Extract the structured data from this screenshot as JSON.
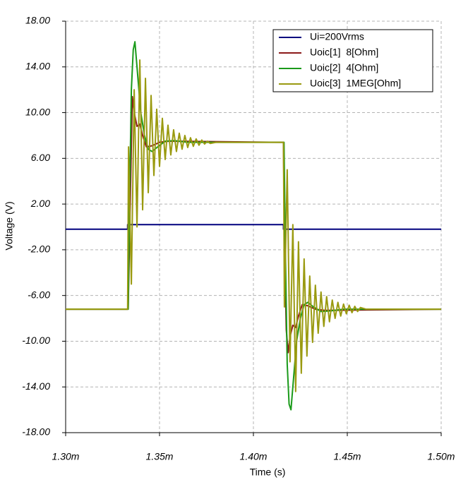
{
  "chart_data": {
    "type": "line",
    "xlabel": "Time (s)",
    "ylabel": "Voltage (V)",
    "xlim": [
      0.0013,
      0.0015
    ],
    "xticks": [
      {
        "value": 0.0013,
        "label": "1.30m"
      },
      {
        "value": 0.00135,
        "label": "1.35m"
      },
      {
        "value": 0.0014,
        "label": "1.40m"
      },
      {
        "value": 0.00145,
        "label": "1.45m"
      },
      {
        "value": 0.0015,
        "label": "1.50m"
      }
    ],
    "ylim": [
      -18,
      18
    ],
    "yticks": [
      {
        "value": 18,
        "label": "18.00"
      },
      {
        "value": 14,
        "label": "14.00"
      },
      {
        "value": 10,
        "label": "10.00"
      },
      {
        "value": 6,
        "label": "6.00"
      },
      {
        "value": 2,
        "label": "2.00"
      },
      {
        "value": -2,
        "label": "-2.00"
      },
      {
        "value": -6,
        "label": "-6.00"
      },
      {
        "value": -10,
        "label": "-10.00"
      },
      {
        "value": -14,
        "label": "-14.00"
      },
      {
        "value": -18,
        "label": "-18.00"
      }
    ],
    "grid": true,
    "legend": "upper right",
    "series": [
      {
        "name": "Ui=200Vrms",
        "color": "#00007f",
        "x": [
          0.0013,
          0.001333,
          0.001333,
          0.001416,
          0.001416,
          0.0015
        ],
        "values": [
          -0.2,
          -0.2,
          0.2,
          0.2,
          -0.2,
          -0.2
        ]
      },
      {
        "name": "Uoic[1]  8[Ohm]",
        "color": "#8b1a1a",
        "x": [
          0.0013,
          0.0013333,
          0.0013345,
          0.0013355,
          0.0013365,
          0.001338,
          0.0013395,
          0.001341,
          0.001343,
          0.001346,
          0.00135,
          0.001355,
          0.001416,
          0.0014165,
          0.0014175,
          0.0014185,
          0.0014195,
          0.001421,
          0.0014225,
          0.001424,
          0.001426,
          0.001429,
          0.001433,
          0.001438,
          0.0015
        ],
        "values": [
          -7.2,
          -7.2,
          3,
          11.4,
          10,
          8.8,
          9,
          8,
          7.0,
          7.1,
          7.4,
          7.5,
          7.4,
          -1,
          -9,
          -11,
          -9.6,
          -8.6,
          -8.8,
          -7.8,
          -6.8,
          -6.9,
          -7.2,
          -7.3,
          -7.2
        ]
      },
      {
        "name": "Uoic[2]  4[Ohm]",
        "color": "#1a9a1a",
        "x": [
          0.0013,
          0.0013333,
          0.001334,
          0.001335,
          0.001336,
          0.0013369,
          0.001338,
          0.00134,
          0.001342,
          0.001344,
          0.001346,
          0.001349,
          0.001353,
          0.001358,
          0.001365,
          0.001416,
          0.0014163,
          0.001417,
          0.001418,
          0.001419,
          0.00142,
          0.001421,
          0.001423,
          0.001425,
          0.001427,
          0.001429,
          0.001432,
          0.001436,
          0.001441,
          0.001448,
          0.0015
        ],
        "values": [
          -7.2,
          -7.2,
          2,
          12,
          15.5,
          16.2,
          14,
          10,
          8,
          6.8,
          6.6,
          7.0,
          7.5,
          7.55,
          7.4,
          7.4,
          7.4,
          -2,
          -12,
          -15.5,
          -16,
          -14,
          -10,
          -8,
          -6.8,
          -6.6,
          -7.0,
          -7.4,
          -7.35,
          -7.2,
          -7.2
        ]
      },
      {
        "name": "Uoic[3]  1MEG[Ohm]",
        "color": "#9a9a10",
        "x": [
          0.0013,
          0.001333,
          0.0013335,
          0.001335,
          0.0013365,
          0.001338,
          0.0013395,
          0.001341,
          0.0013425,
          0.001344,
          0.0013455,
          0.001347,
          0.0013485,
          0.00135,
          0.0013515,
          0.001353,
          0.0013545,
          0.001356,
          0.0013575,
          0.001359,
          0.0013605,
          0.001362,
          0.0013635,
          0.001365,
          0.0013665,
          0.001368,
          0.0013695,
          0.001371,
          0.0013725,
          0.001374,
          0.0013755,
          0.001377,
          0.00138,
          0.001416,
          0.0014165,
          0.001418,
          0.0014195,
          0.001421,
          0.0014225,
          0.001424,
          0.0014255,
          0.001427,
          0.0014285,
          0.00143,
          0.0014315,
          0.001433,
          0.0014345,
          0.001436,
          0.0014375,
          0.001439,
          0.0014405,
          0.001442,
          0.0014435,
          0.001445,
          0.0014465,
          0.001448,
          0.0014495,
          0.001451,
          0.0014525,
          0.001454,
          0.0014555,
          0.001457,
          0.00146,
          0.0015
        ],
        "values": [
          -7.2,
          -7.2,
          7,
          -5,
          12,
          0,
          14.6,
          1.5,
          13,
          3,
          11.5,
          4.5,
          10.3,
          5.3,
          9.5,
          5.9,
          8.9,
          6.3,
          8.5,
          6.6,
          8.2,
          6.8,
          8.0,
          6.95,
          7.8,
          7.05,
          7.7,
          7.15,
          7.6,
          7.25,
          7.5,
          7.3,
          7.4,
          7.4,
          -7,
          5,
          -11.8,
          0.2,
          -14.4,
          -1.3,
          -12.8,
          -2.8,
          -11.3,
          -4.3,
          -10.1,
          -5.1,
          -9.3,
          -5.7,
          -8.7,
          -6.1,
          -8.3,
          -6.4,
          -8.0,
          -6.6,
          -7.8,
          -6.75,
          -7.6,
          -6.85,
          -7.5,
          -6.95,
          -7.4,
          -7.05,
          -7.2,
          -7.2
        ]
      }
    ]
  }
}
